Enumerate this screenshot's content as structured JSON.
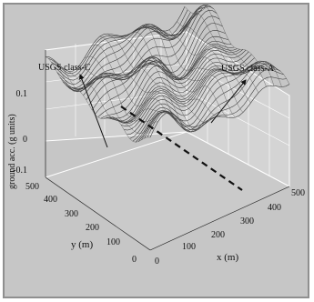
{
  "chart_data": {
    "type": "surface",
    "xlabel": "x (m)",
    "ylabel": "y (m)",
    "zlabel": "ground acc. (g units)",
    "xlim": [
      0,
      500
    ],
    "ylim": [
      0,
      500
    ],
    "zlim": [
      -0.1,
      0.1
    ],
    "x_ticks": [
      "0",
      "100",
      "200",
      "300",
      "400",
      "500"
    ],
    "y_ticks": [
      "0",
      "100",
      "200",
      "300",
      "400",
      "500"
    ],
    "z_ticks": [
      "-0.1",
      "0",
      "0.1"
    ],
    "grid": true,
    "annotations": [
      "USGS class-C",
      "USGS class-A"
    ],
    "boundary": "dashed line separating soil classes"
  }
}
